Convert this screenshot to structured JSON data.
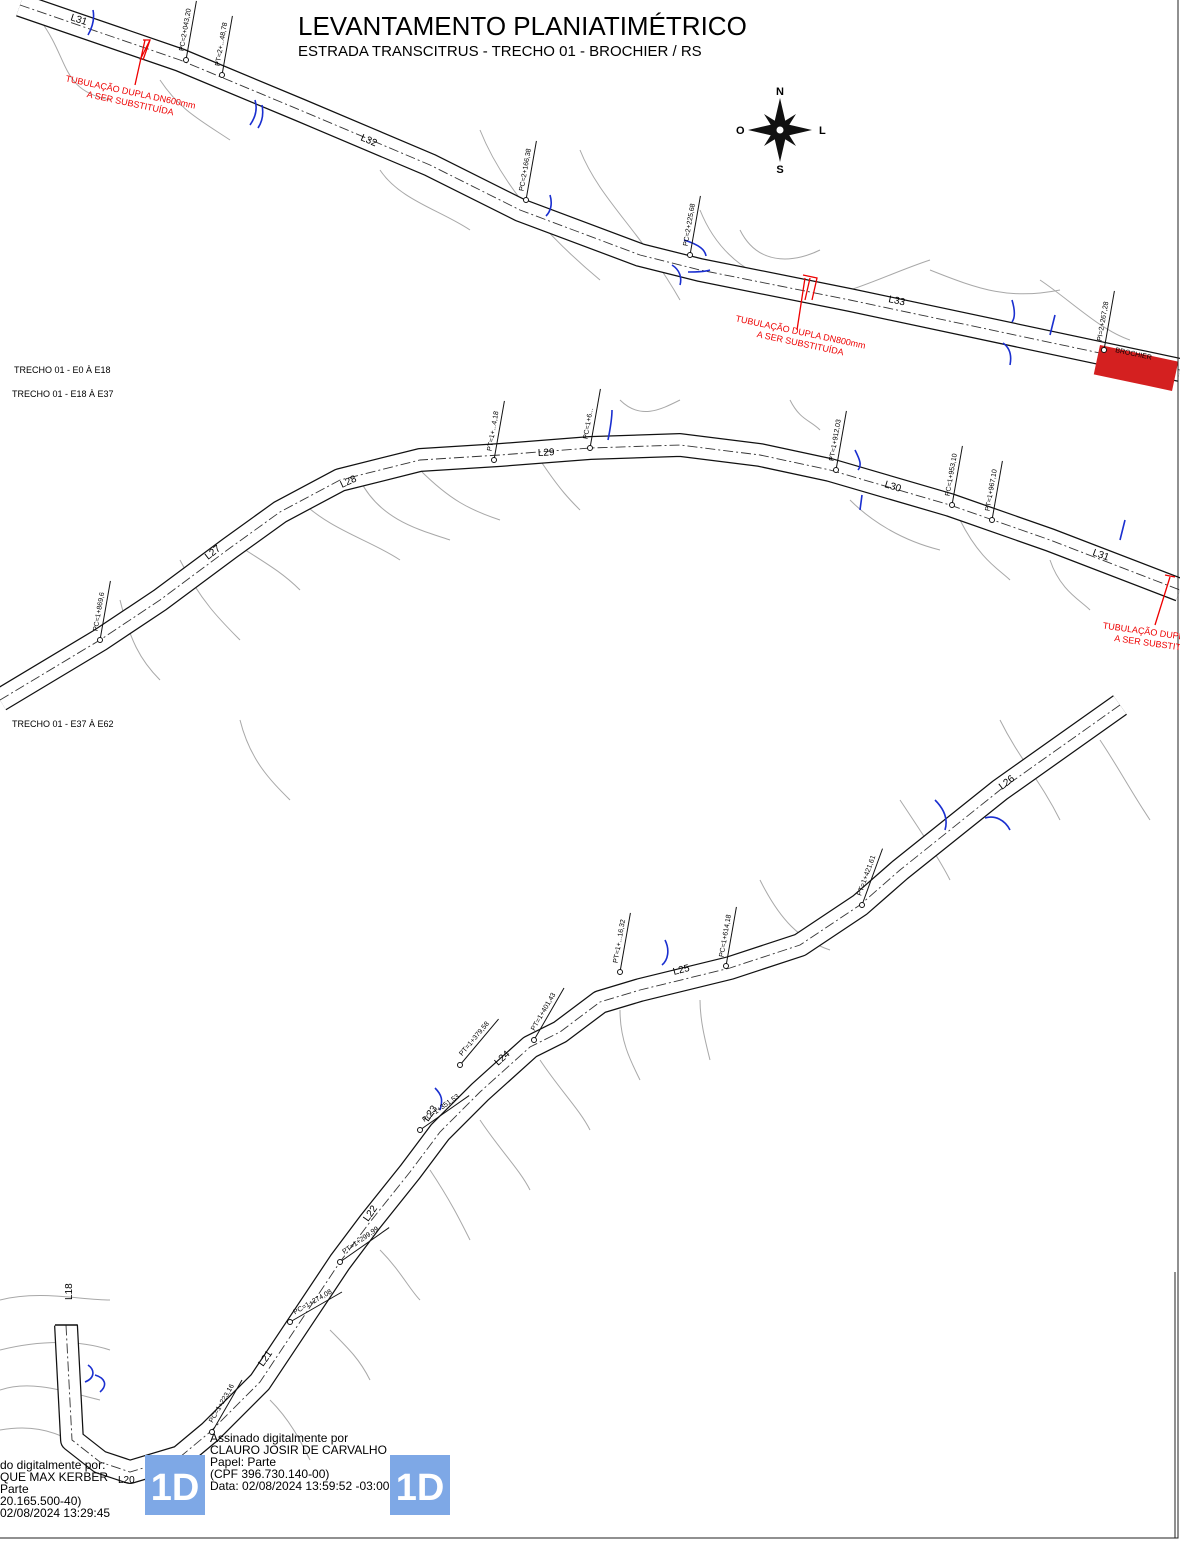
{
  "header": {
    "title": "LEVANTAMENTO PLANIATIMÉTRICO",
    "subtitle": "ESTRADA TRANSCITRUS - TRECHO 01 - BROCHIER / RS"
  },
  "compass": {
    "north": "N",
    "south": "S",
    "east": "L",
    "west": "O"
  },
  "sections": [
    "TRECHO 01 - E0 À E18",
    "TRECHO 01 - E18 À E37",
    "TRECHO 01 - E37 À E62"
  ],
  "annotations": [
    {
      "line1": "TUBULAÇÃO DUPLA DN600mm",
      "line2": "A SER SUBSTITUÍDA"
    },
    {
      "line1": "TUBULAÇÃO DUPLA DN800mm",
      "line2": "A SER SUBSTITUÍDA"
    },
    {
      "line1": "TUBULAÇÃO DUPLA D",
      "line2": "A SER SUBSTITU"
    }
  ],
  "place": "BROCHIER",
  "road_labels": [
    "L31",
    "L32",
    "L33",
    "L29",
    "L30",
    "L31",
    "L28",
    "L27",
    "L26",
    "L25",
    "L24",
    "L23",
    "L22",
    "L21",
    "L20",
    "L18"
  ],
  "curve_labels": [
    "PC=2+043,20",
    "PT=2+...48,78",
    "PC=2+166,38",
    "PC=2+225,68",
    "PI=2+267,28",
    "PT=1+...4,18",
    "PC=1+6...",
    "PT=1+912,03",
    "PC=1+953,10",
    "PT=1+967,10",
    "PC=1+869,6",
    "PT=1+401,43",
    "PT=1+...16,32",
    "PC=1+614,18",
    "PT=1+421,61",
    "PT=1+379,58",
    "PC=1+351,53",
    "PT=1+299,99",
    "PC=1+274,08",
    "PC=1+223,16"
  ],
  "signatures": [
    {
      "lines": [
        "do digitalmente por:",
        "QUE MAX KERBER",
        "Parte",
        "20.165.500-40)",
        "02/08/2024 13:29:45"
      ]
    },
    {
      "lines": [
        "Assinado digitalmente por",
        "CLAURO JOSIR DE CARVALHO",
        "Papel: Parte",
        "(CPF 396.730.140-00)",
        "Data: 02/08/2024 13:59:52 -03:00"
      ]
    }
  ]
}
